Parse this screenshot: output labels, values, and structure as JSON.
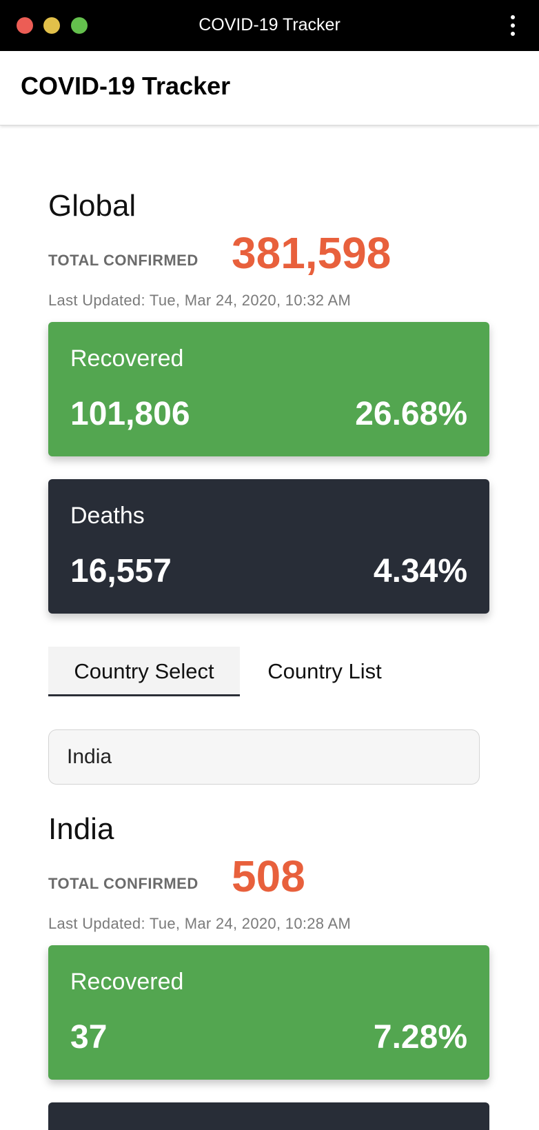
{
  "window": {
    "title": "COVID-19 Tracker"
  },
  "app": {
    "title": "COVID-19 Tracker"
  },
  "global": {
    "name": "Global",
    "total_label": "TOTAL CONFIRMED",
    "total_value": "381,598",
    "last_updated": "Last Updated: Tue, Mar 24, 2020, 10:32 AM",
    "recovered": {
      "label": "Recovered",
      "count": "101,806",
      "percent": "26.68%"
    },
    "deaths": {
      "label": "Deaths",
      "count": "16,557",
      "percent": "4.34%"
    }
  },
  "tabs": [
    {
      "label": "Country Select",
      "active": true
    },
    {
      "label": "Country List",
      "active": false
    }
  ],
  "country_select": {
    "value": "India"
  },
  "country": {
    "name": "India",
    "total_label": "TOTAL CONFIRMED",
    "total_value": "508",
    "last_updated": "Last Updated: Tue, Mar 24, 2020, 10:28 AM",
    "recovered": {
      "label": "Recovered",
      "count": "37",
      "percent": "7.28%"
    }
  },
  "colors": {
    "accent_total": "#e8603c",
    "recovered_card": "#53a650",
    "deaths_card": "#282d37",
    "titlebar": "#000000"
  },
  "icons": {
    "window_controls": [
      "close-button",
      "minimize-button",
      "maximize-button"
    ],
    "menu": "more-vertical-icon"
  }
}
